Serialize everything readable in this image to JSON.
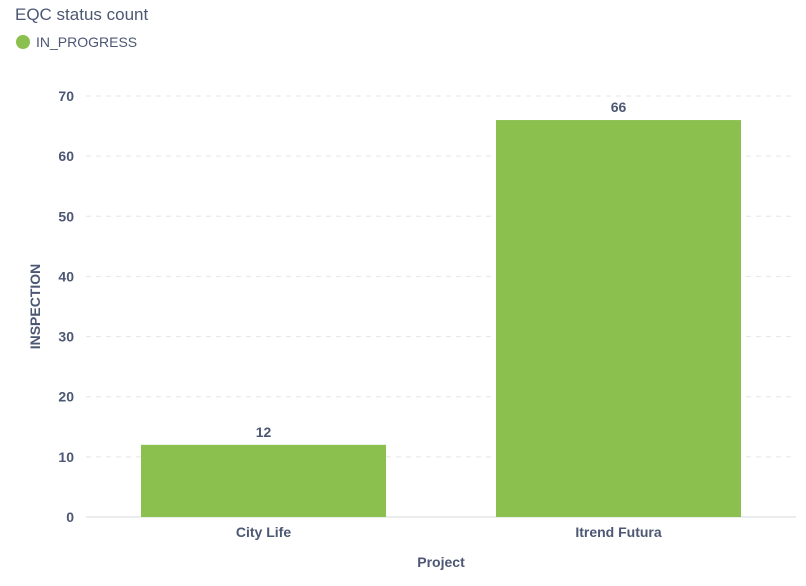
{
  "chart_data": {
    "type": "bar",
    "title": "EQC status count",
    "xlabel": "Project",
    "ylabel": "INSPECTION",
    "categories": [
      "City Life",
      "Itrend Futura"
    ],
    "series": [
      {
        "name": "IN_PROGRESS",
        "values": [
          12,
          66
        ],
        "color": "#8bc04f"
      }
    ],
    "ylim": [
      0,
      70
    ],
    "yticks": [
      0,
      10,
      20,
      30,
      40,
      50,
      60,
      70
    ],
    "grid": true,
    "legend": "top-left",
    "data_labels": true
  }
}
